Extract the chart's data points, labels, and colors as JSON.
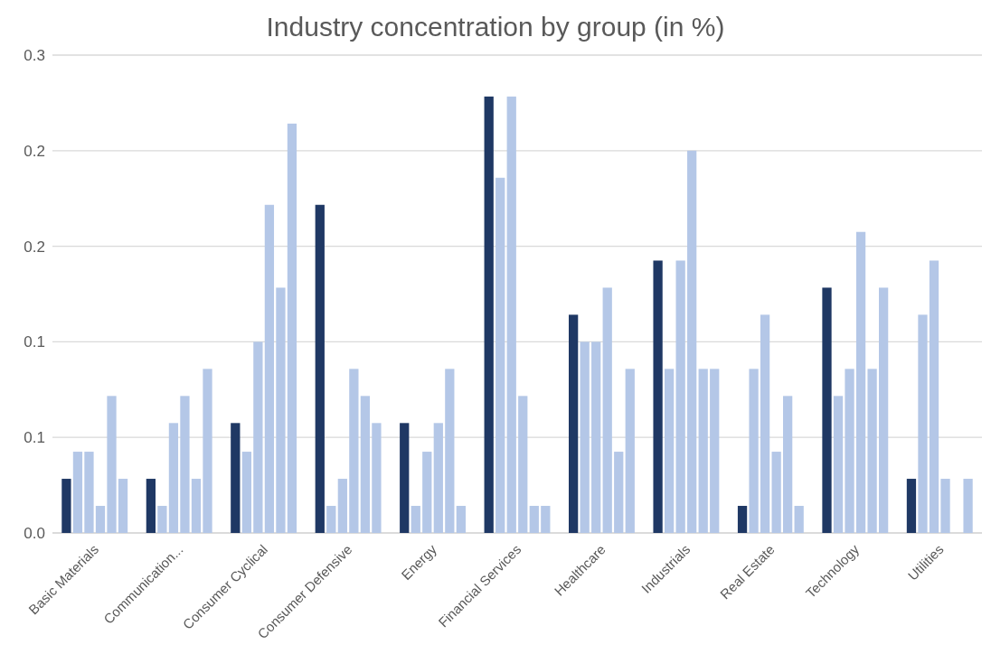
{
  "chart_data": {
    "type": "bar",
    "title": "Industry concentration by group (in %)",
    "categories": [
      "Basic Materials",
      "Communication...",
      "Consumer Cyclical",
      "Consumer Defensive",
      "Energy",
      "Financial Services",
      "Healthcare",
      "Industrials",
      "Real Estate",
      "Technology",
      "Utilities"
    ],
    "series": [
      {
        "color": "#1f3864",
        "values": [
          0.034,
          0.034,
          0.069,
          0.206,
          0.069,
          0.274,
          0.137,
          0.171,
          0.017,
          0.154,
          0.034
        ]
      },
      {
        "color": "#b4c7e7",
        "values": [
          0.051,
          0.017,
          0.051,
          0.017,
          0.017,
          0.223,
          0.12,
          0.103,
          0.103,
          0.086,
          0.137
        ]
      },
      {
        "color": "#b4c7e7",
        "values": [
          0.051,
          0.069,
          0.12,
          0.034,
          0.051,
          0.274,
          0.12,
          0.171,
          0.137,
          0.103,
          0.171
        ]
      },
      {
        "color": "#b4c7e7",
        "values": [
          0.017,
          0.086,
          0.206,
          0.103,
          0.069,
          0.086,
          0.154,
          0.24,
          0.051,
          0.189,
          0.034
        ]
      },
      {
        "color": "#b4c7e7",
        "values": [
          0.086,
          0.034,
          0.154,
          0.086,
          0.103,
          0.017,
          0.051,
          0.103,
          0.086,
          0.103,
          0
        ]
      },
      {
        "color": "#b4c7e7",
        "values": [
          0.034,
          0.103,
          0.257,
          0.069,
          0.017,
          0.017,
          0.103,
          0.103,
          0.017,
          0.154,
          0.034
        ]
      }
    ],
    "ylim": [
      0,
      0.3
    ],
    "yticks": [
      {
        "value": 0,
        "label": "0.0"
      },
      {
        "value": 0.06,
        "label": "0.1"
      },
      {
        "value": 0.12,
        "label": "0.1"
      },
      {
        "value": 0.18,
        "label": "0.2"
      },
      {
        "value": 0.24,
        "label": "0.2"
      },
      0.3
    ],
    "grid": "y"
  }
}
